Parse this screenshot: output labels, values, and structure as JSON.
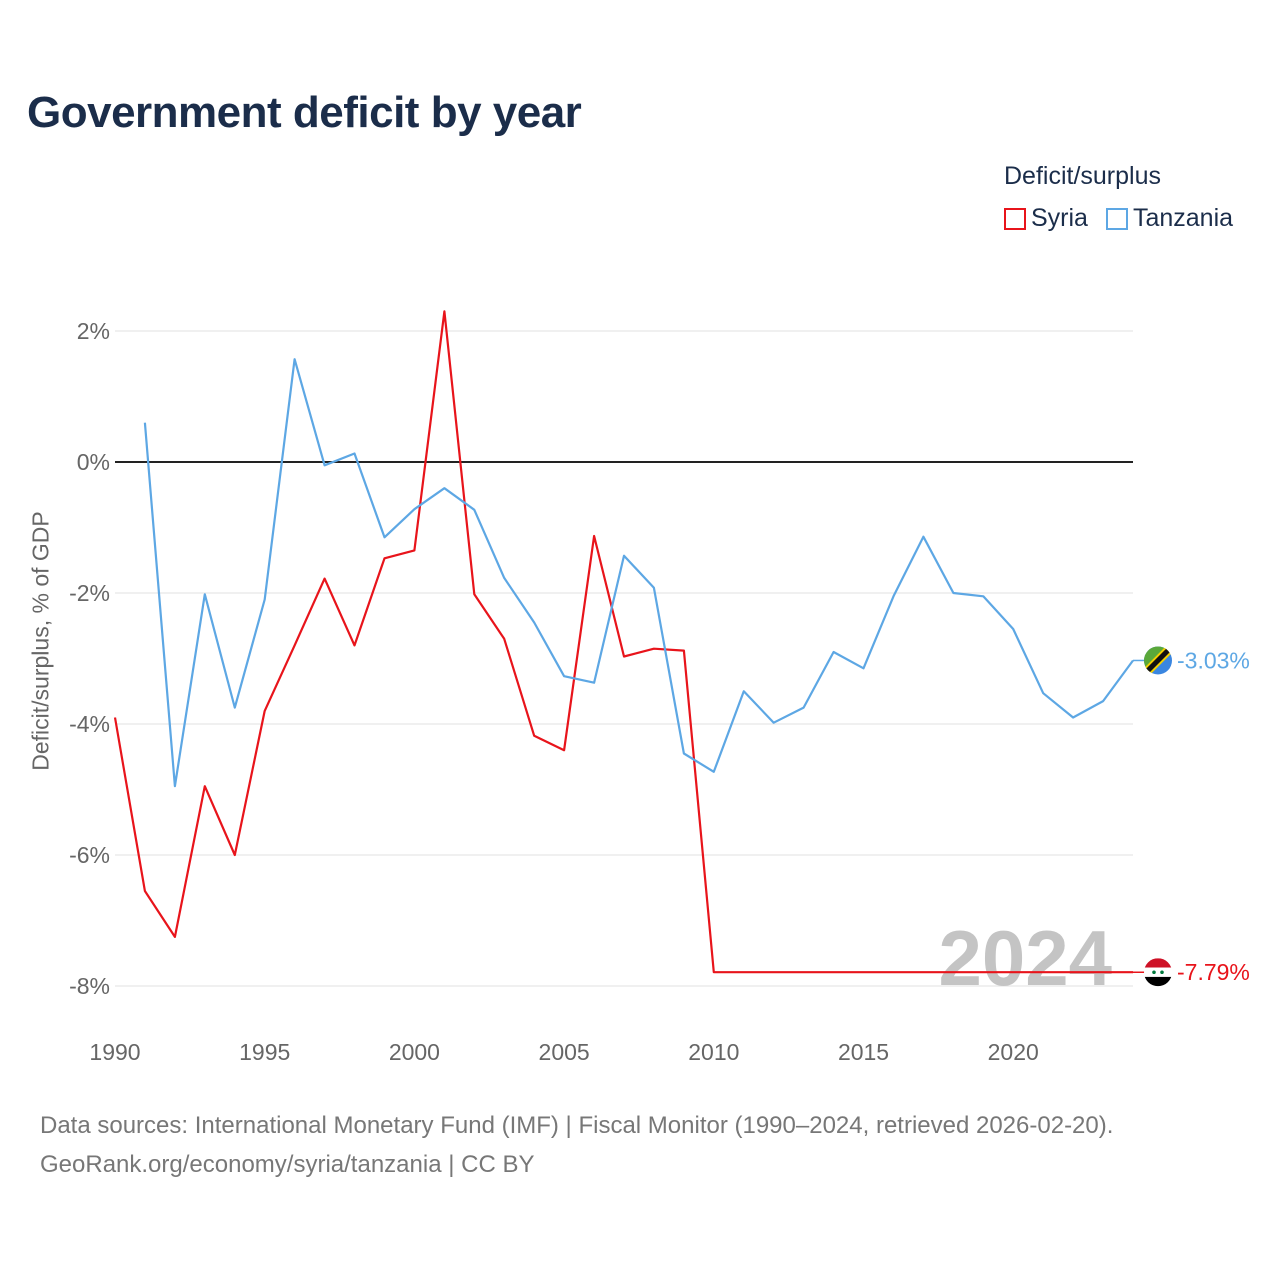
{
  "title": "Government deficit by year",
  "legend": {
    "title": "Deficit/surplus",
    "items": [
      {
        "label": "Syria",
        "color": "#e8141b"
      },
      {
        "label": "Tanzania",
        "color": "#5da7e4"
      }
    ]
  },
  "year_watermark": "2024",
  "footer": {
    "line1": "Data sources: International Monetary Fund (IMF) | Fiscal Monitor (1990–2024, retrieved 2026-02-20).",
    "line2": "GeoRank.org/economy/syria/tanzania | CC BY"
  },
  "chart_data": {
    "type": "line",
    "title": "Government deficit by year",
    "xlabel": "",
    "ylabel": "Deficit/surplus, % of GDP",
    "xlim": [
      1990,
      2024
    ],
    "ylim": [
      -8,
      2
    ],
    "x_ticks": [
      1990,
      1995,
      2000,
      2005,
      2010,
      2015,
      2020
    ],
    "y_ticks": [
      2,
      0,
      -2,
      -4,
      -6,
      -8
    ],
    "y_tick_labels": [
      "2%",
      "0%",
      "-2%",
      "-4%",
      "-6%",
      "-8%"
    ],
    "series": [
      {
        "name": "Syria",
        "color": "#e8141b",
        "end_label": "-7.79%",
        "points": [
          [
            1990,
            -3.9
          ],
          [
            1991,
            -6.55
          ],
          [
            1992,
            -7.25
          ],
          [
            1993,
            -4.95
          ],
          [
            1994,
            -6.0
          ],
          [
            1995,
            -3.8
          ],
          [
            1996,
            -2.8
          ],
          [
            1997,
            -1.78
          ],
          [
            1998,
            -2.8
          ],
          [
            1999,
            -1.47
          ],
          [
            2000,
            -1.35
          ],
          [
            2001,
            2.3
          ],
          [
            2002,
            -2.02
          ],
          [
            2003,
            -2.7
          ],
          [
            2004,
            -4.18
          ],
          [
            2005,
            -4.4
          ],
          [
            2006,
            -1.13
          ],
          [
            2007,
            -2.97
          ],
          [
            2008,
            -2.85
          ],
          [
            2009,
            -2.88
          ],
          [
            2010,
            -7.79
          ],
          [
            2024,
            -7.79
          ]
        ]
      },
      {
        "name": "Tanzania",
        "color": "#5da7e4",
        "end_label": "-3.03%",
        "points": [
          [
            1991,
            0.6
          ],
          [
            1992,
            -4.95
          ],
          [
            1993,
            -2.02
          ],
          [
            1994,
            -3.75
          ],
          [
            1995,
            -2.1
          ],
          [
            1996,
            1.57
          ],
          [
            1997,
            -0.05
          ],
          [
            1998,
            0.13
          ],
          [
            1999,
            -1.15
          ],
          [
            2000,
            -0.72
          ],
          [
            2001,
            -0.4
          ],
          [
            2002,
            -0.73
          ],
          [
            2003,
            -1.77
          ],
          [
            2004,
            -2.45
          ],
          [
            2005,
            -3.27
          ],
          [
            2006,
            -3.37
          ],
          [
            2007,
            -1.43
          ],
          [
            2008,
            -1.92
          ],
          [
            2009,
            -4.45
          ],
          [
            2010,
            -4.73
          ],
          [
            2011,
            -3.5
          ],
          [
            2012,
            -3.98
          ],
          [
            2013,
            -3.75
          ],
          [
            2014,
            -2.9
          ],
          [
            2015,
            -3.15
          ],
          [
            2016,
            -2.05
          ],
          [
            2017,
            -1.14
          ],
          [
            2018,
            -2.0
          ],
          [
            2019,
            -2.05
          ],
          [
            2020,
            -2.55
          ],
          [
            2021,
            -3.53
          ],
          [
            2022,
            -3.9
          ],
          [
            2023,
            -3.65
          ],
          [
            2024,
            -3.03
          ]
        ]
      }
    ]
  }
}
